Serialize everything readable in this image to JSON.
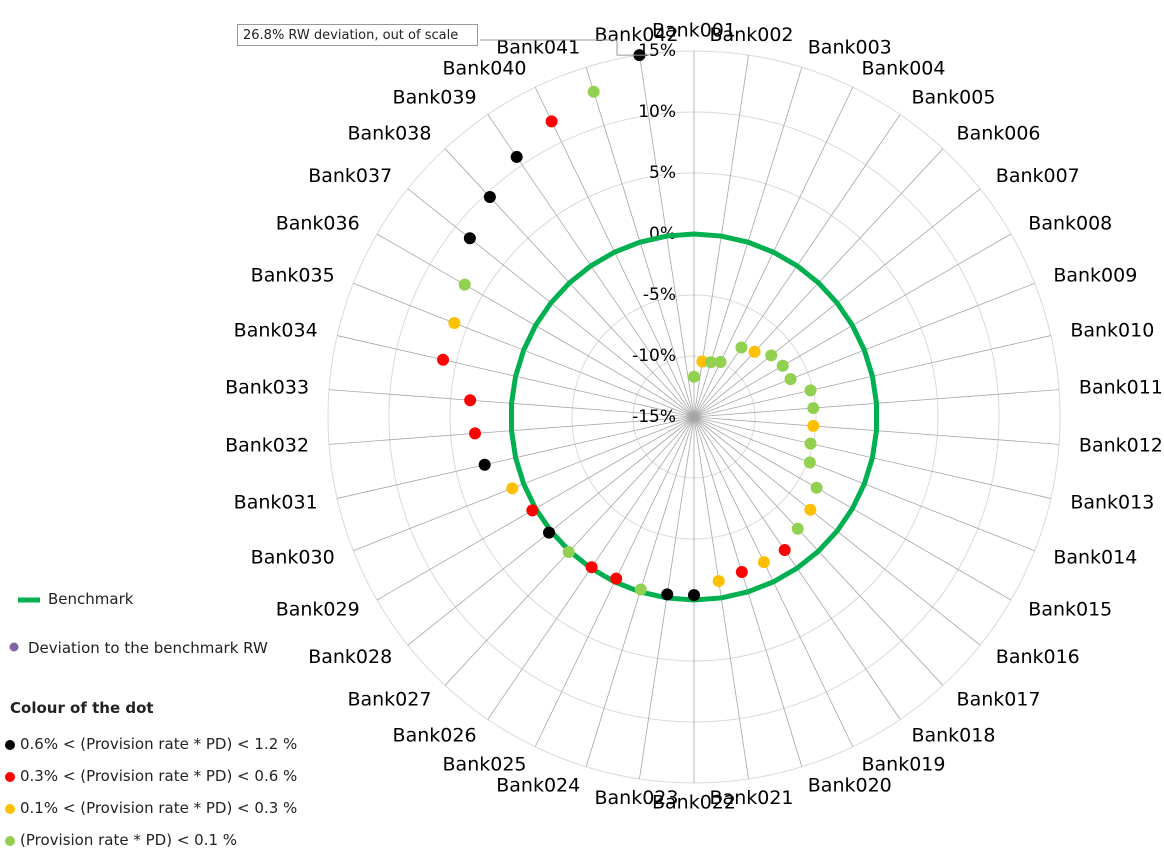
{
  "chart_data": {
    "type": "radar",
    "categories": [
      "Bank001",
      "Bank002",
      "Bank003",
      "Bank004",
      "Bank005",
      "Bank006",
      "Bank007",
      "Bank008",
      "Bank009",
      "Bank010",
      "Bank011",
      "Bank012",
      "Bank013",
      "Bank014",
      "Bank015",
      "Bank016",
      "Bank017",
      "Bank018",
      "Bank019",
      "Bank020",
      "Bank021",
      "Bank022",
      "Bank023",
      "Bank024",
      "Bank025",
      "Bank026",
      "Bank027",
      "Bank028",
      "Bank029",
      "Bank030",
      "Bank031",
      "Bank032",
      "Bank033",
      "Bank034",
      "Bank035",
      "Bank036",
      "Bank037",
      "Bank038",
      "Bank039",
      "Bank040",
      "Bank041",
      "Bank042"
    ],
    "series": [
      {
        "name": "Benchmark",
        "color": "#00b050",
        "values": [
          0,
          0,
          0,
          0,
          0,
          0,
          0,
          0,
          0,
          0,
          0,
          0,
          0,
          0,
          0,
          0,
          0,
          0,
          0,
          0,
          0,
          0,
          0,
          0,
          0,
          0,
          0,
          0,
          0,
          0,
          0,
          0,
          0,
          0,
          0,
          0,
          0,
          0,
          0,
          0,
          0,
          0
        ]
      },
      {
        "name": "Deviation to the benchmark RW",
        "color": "#8064a2",
        "values": [
          -11.7,
          -10.4,
          -10.3,
          -10.0,
          -8.1,
          -7.7,
          -6.9,
          -6.6,
          -6.5,
          -5.2,
          -5.2,
          -5.2,
          -5.2,
          -4.8,
          -3.4,
          -2.8,
          -2.5,
          -1.8,
          -1.8,
          -1.7,
          -1.4,
          -0.4,
          -0.3,
          -0.2,
          -0.3,
          -0.1,
          0.1,
          0.2,
          0.3,
          1.0,
          2.6,
          3.0,
          3.4,
          6.1,
          6.1,
          6.7,
          8.5,
          9.6,
          10.8,
          11.9,
          12.9,
          15
        ],
        "point_colors": [
          "#92d050",
          "#ffc000",
          "#92d050",
          "#92d050",
          "#92d050",
          "#ffc000",
          "#92d050",
          "#92d050",
          "#92d050",
          "#92d050",
          "#92d050",
          "#ffc000",
          "#92d050",
          "#92d050",
          "#92d050",
          "#ffc000",
          "#92d050",
          "#ff0000",
          "#ffc000",
          "#ff0000",
          "#ffc000",
          "#000000",
          "#000000",
          "#92d050",
          "#ff0000",
          "#ff0000",
          "#92d050",
          "#000000",
          "#ff0000",
          "#ffc000",
          "#000000",
          "#ff0000",
          "#ff0000",
          "#ff0000",
          "#ffc000",
          "#92d050",
          "#000000",
          "#000000",
          "#000000",
          "#ff0000",
          "#92d050",
          "#000000"
        ]
      }
    ],
    "rlim": [
      -15,
      15
    ],
    "rticks": [
      {
        "value": -15,
        "label": "-15%"
      },
      {
        "value": -10,
        "label": "-10%"
      },
      {
        "value": -5,
        "label": "-5%"
      },
      {
        "value": 0,
        "label": "0%"
      },
      {
        "value": 5,
        "label": "5%"
      },
      {
        "value": 10,
        "label": "10%"
      },
      {
        "value": 15,
        "label": "15%"
      }
    ],
    "grid": true,
    "annotation": "26.8% RW deviation, out of scale",
    "color_legend": {
      "title": "Colour of the dot",
      "items": [
        {
          "label": "0.6% < (Provision rate * PD) < 1.2 %",
          "color": "#000000"
        },
        {
          "label": "0.3% < (Provision rate * PD) < 0.6 %",
          "color": "#ff0000"
        },
        {
          "label": "0.1% < (Provision rate * PD) < 0.3 %",
          "color": "#ffc000"
        },
        {
          "label": "(Provision rate * PD) < 0.1 %",
          "color": "#92d050"
        }
      ]
    }
  }
}
